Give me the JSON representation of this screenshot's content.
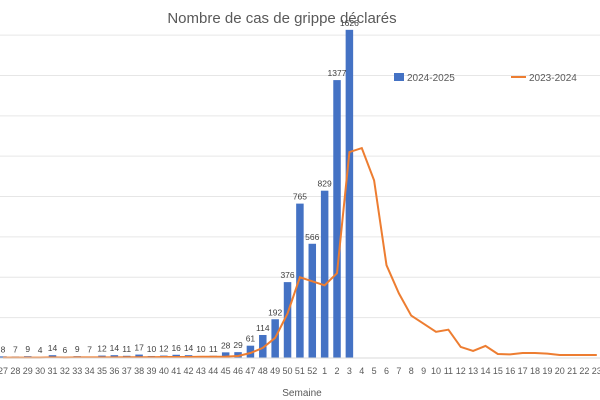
{
  "chart_data": {
    "type": "bar",
    "title": "Nombre de cas de grippe déclarés",
    "xlabel": "Semaine",
    "ylabel": "",
    "ylim": [
      0,
      1650
    ],
    "grid": true,
    "legend_position": "top-right",
    "categories": [
      "27",
      "28",
      "29",
      "30",
      "31",
      "32",
      "33",
      "34",
      "35",
      "36",
      "37",
      "38",
      "39",
      "40",
      "41",
      "42",
      "43",
      "44",
      "45",
      "46",
      "47",
      "48",
      "49",
      "50",
      "51",
      "52",
      "1",
      "2",
      "3",
      "4",
      "5",
      "6",
      "7",
      "8",
      "9",
      "10",
      "11",
      "12",
      "13",
      "14",
      "15",
      "16",
      "17",
      "18",
      "19",
      "20",
      "21",
      "22",
      "23"
    ],
    "series": [
      {
        "name": "2024-2025",
        "kind": "bar",
        "color": "#4472C4",
        "values": [
          8,
          7,
          9,
          4,
          14,
          6,
          9,
          7,
          12,
          14,
          11,
          17,
          10,
          12,
          16,
          14,
          10,
          11,
          28,
          29,
          61,
          114,
          192,
          376,
          765,
          566,
          829,
          1377,
          1626,
          null,
          null,
          null,
          null,
          null,
          null,
          null,
          null,
          null,
          null,
          null,
          null,
          null,
          null,
          null,
          null,
          null,
          null,
          null,
          null
        ],
        "labels": [
          "8",
          "7",
          "9",
          "4",
          "14",
          "6",
          "9",
          "7",
          "12",
          "14",
          "11",
          "17",
          "10",
          "12",
          "16",
          "14",
          "10",
          "11",
          "28",
          "29",
          "61",
          "114",
          "192",
          "376",
          "765",
          "566",
          "829",
          "1377",
          "1626",
          "",
          "",
          "",
          "",
          "",
          "",
          "",
          "",
          "",
          "",
          "",
          "",
          "",
          "",
          "",
          "",
          "",
          "",
          "",
          ""
        ]
      },
      {
        "name": "2023-2024",
        "kind": "line",
        "color": "#ED7D31",
        "values": [
          2,
          2,
          2,
          2,
          3,
          2,
          3,
          3,
          3,
          3,
          4,
          4,
          4,
          5,
          5,
          5,
          6,
          6,
          7,
          10,
          25,
          50,
          100,
          220,
          400,
          380,
          360,
          420,
          1020,
          1040,
          880,
          460,
          320,
          210,
          170,
          130,
          140,
          55,
          35,
          60,
          20,
          18,
          25,
          25,
          22,
          15,
          15,
          15,
          15
        ]
      }
    ]
  }
}
